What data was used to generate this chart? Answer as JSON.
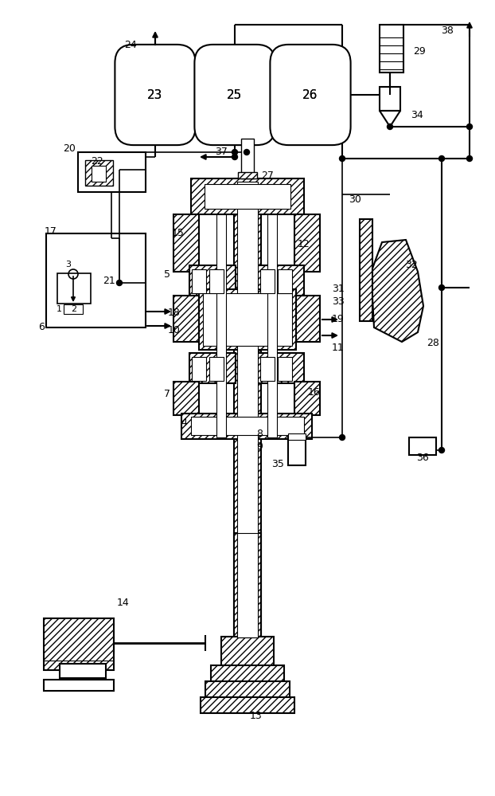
{
  "bg_color": "#ffffff",
  "lc": "#000000",
  "fig_w": 6.22,
  "fig_h": 9.99,
  "dpi": 100,
  "labels": [
    [
      172,
      942,
      "24",
      9,
      "right"
    ],
    [
      130,
      796,
      "22",
      9,
      "right"
    ],
    [
      278,
      808,
      "37",
      9,
      "center"
    ],
    [
      519,
      935,
      "29",
      9,
      "left"
    ],
    [
      516,
      855,
      "34",
      9,
      "left"
    ],
    [
      554,
      960,
      "38",
      9,
      "left"
    ],
    [
      438,
      748,
      "30",
      9,
      "left"
    ],
    [
      328,
      778,
      "27",
      9,
      "left"
    ],
    [
      374,
      693,
      "12",
      9,
      "left"
    ],
    [
      216,
      706,
      "15",
      9,
      "left"
    ],
    [
      206,
      655,
      "5",
      9,
      "left"
    ],
    [
      211,
      606,
      "18",
      9,
      "left"
    ],
    [
      211,
      585,
      "10",
      9,
      "left"
    ],
    [
      206,
      504,
      "7",
      9,
      "left"
    ],
    [
      227,
      468,
      "4",
      9,
      "left"
    ],
    [
      322,
      454,
      "8",
      9,
      "left"
    ],
    [
      322,
      438,
      "9",
      9,
      "left"
    ],
    [
      387,
      507,
      "16",
      9,
      "left"
    ],
    [
      417,
      563,
      "11",
      9,
      "left"
    ],
    [
      417,
      599,
      "19",
      9,
      "left"
    ],
    [
      417,
      636,
      "31",
      9,
      "left"
    ],
    [
      417,
      621,
      "33",
      9,
      "left"
    ],
    [
      509,
      667,
      "32",
      9,
      "left"
    ],
    [
      536,
      569,
      "28",
      9,
      "left"
    ],
    [
      129,
      647,
      "21",
      9,
      "left"
    ],
    [
      56,
      708,
      "17",
      9,
      "left"
    ],
    [
      71,
      611,
      "1",
      8,
      "left"
    ],
    [
      89,
      611,
      "2",
      8,
      "left"
    ],
    [
      82,
      667,
      "3",
      8,
      "left"
    ],
    [
      56,
      589,
      "6",
      9,
      "right"
    ],
    [
      95,
      812,
      "20",
      9,
      "right"
    ],
    [
      195,
      880,
      "23",
      11,
      "center"
    ],
    [
      295,
      880,
      "25",
      11,
      "center"
    ],
    [
      390,
      880,
      "26",
      11,
      "center"
    ],
    [
      322,
      100,
      "13",
      9,
      "center"
    ],
    [
      147,
      242,
      "14",
      9,
      "left"
    ],
    [
      357,
      417,
      "35",
      9,
      "right"
    ],
    [
      531,
      424,
      "36",
      9,
      "center"
    ]
  ]
}
